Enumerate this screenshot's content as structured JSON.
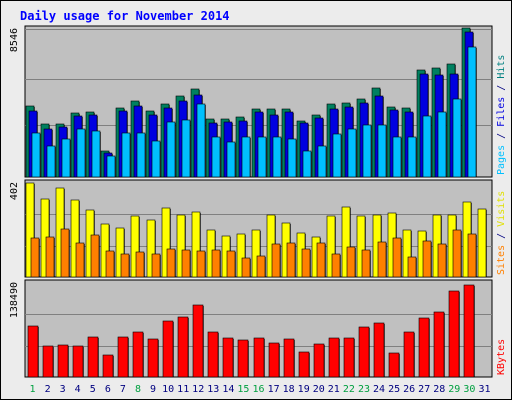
{
  "chart_data": {
    "type": "bar",
    "title": "Daily usage for November 2014",
    "categories": [
      "1",
      "2",
      "3",
      "4",
      "5",
      "6",
      "7",
      "8",
      "9",
      "10",
      "11",
      "12",
      "13",
      "14",
      "15",
      "16",
      "17",
      "18",
      "19",
      "20",
      "21",
      "22",
      "23",
      "24",
      "25",
      "26",
      "27",
      "28",
      "29",
      "30",
      "31"
    ],
    "weekend_days": [
      "1",
      "8",
      "15",
      "16",
      "22",
      "23",
      "29",
      "30"
    ],
    "panels": [
      {
        "id": "pages-files-hits",
        "max_label": "8546",
        "ymax": 8546,
        "axis_label": [
          {
            "text": "Pages",
            "color": "#00c0ff"
          },
          {
            "text": " / ",
            "color": "#000080"
          },
          {
            "text": "Files",
            "color": "#0000e0"
          },
          {
            "text": " / ",
            "color": "#000080"
          },
          {
            "text": "Hits",
            "color": "#008080"
          }
        ],
        "series": [
          {
            "name": "Hits",
            "color": "#008060",
            "values": [
              4100,
              3050,
              3050,
              3700,
              3750,
              1500,
              4000,
              4400,
              3800,
              4200,
              4650,
              5100,
              3350,
              3350,
              3450,
              3900,
              3900,
              3900,
              3250,
              3600,
              4200,
              4300,
              4500,
              5150,
              4050,
              4000,
              6150,
              6300,
              6550,
              8600,
              0
            ]
          },
          {
            "name": "Files",
            "color": "#0000e0",
            "values": [
              3800,
              2800,
              2900,
              3500,
              3600,
              1400,
              3800,
              4100,
              3600,
              4000,
              4400,
              4750,
              3100,
              3200,
              3250,
              3750,
              3600,
              3750,
              3100,
              3400,
              3950,
              4050,
              4250,
              4700,
              3850,
              3750,
              5950,
              5900,
              5950,
              8350,
              0
            ]
          },
          {
            "name": "Pages",
            "color": "#00c0ff",
            "values": [
              2550,
              1800,
              2200,
              2800,
              2650,
              1200,
              2550,
              2550,
              2050,
              3200,
              3300,
              4200,
              2300,
              2000,
              2300,
              2300,
              2300,
              2200,
              1500,
              1800,
              2500,
              2750,
              3000,
              3000,
              2300,
              2300,
              3550,
              3750,
              4500,
              7500,
              0
            ]
          }
        ]
      },
      {
        "id": "visits-sites",
        "max_label": "402",
        "ymax": 402,
        "axis_label": [
          {
            "text": "Sites",
            "color": "#ff8000"
          },
          {
            "text": " / ",
            "color": "#000080"
          },
          {
            "text": "Visits",
            "color": "#e0e000"
          }
        ],
        "series": [
          {
            "name": "Visits",
            "color": "#ffff00",
            "values": [
              400,
              335,
              380,
              330,
              285,
              225,
              210,
              260,
              245,
              295,
              265,
              280,
              200,
              175,
              185,
              200,
              265,
              230,
              190,
              170,
              260,
              300,
              260,
              265,
              275,
              200,
              195,
              265,
              265,
              320,
              290
            ]
          },
          {
            "name": "Sites",
            "color": "#ff8000",
            "values": [
              165,
              170,
              205,
              145,
              180,
              110,
              100,
              105,
              100,
              120,
              115,
              110,
              115,
              110,
              80,
              90,
              140,
              145,
              120,
              145,
              100,
              130,
              115,
              150,
              165,
              85,
              155,
              140,
              200,
              185,
              0
            ]
          }
        ]
      },
      {
        "id": "kbytes",
        "max_label": "138490",
        "ymax": 138490,
        "axis_label": [
          {
            "text": "KBytes",
            "color": "#ff0000"
          }
        ],
        "series": [
          {
            "name": "KBytes",
            "color": "#ff0000",
            "values": [
              75000,
              45000,
              47000,
              45000,
              59000,
              33000,
              59000,
              67000,
              56000,
              82000,
              88000,
              106000,
              67000,
              57000,
              54000,
              57000,
              50000,
              56000,
              37000,
              48000,
              58000,
              58000,
              74000,
              79000,
              35000,
              67000,
              87000,
              96000,
              126000,
              136000,
              0
            ]
          }
        ]
      }
    ],
    "colors": {
      "background": "#ececec",
      "plot_background": "#c0c0c0",
      "frame": "#000000",
      "gridline": "#808080",
      "title": "#0000ff",
      "weekday_label": "#000080",
      "weekend_label": "#00a040",
      "shadow": "#000000"
    }
  }
}
